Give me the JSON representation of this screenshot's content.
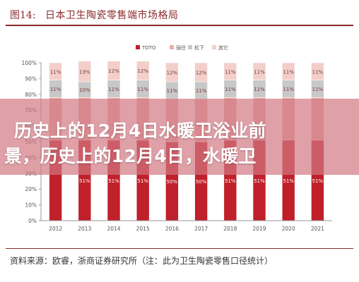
{
  "header": {
    "figure_label": "图14:",
    "title": "日本卫生陶瓷零售端市场格局"
  },
  "overlay": {
    "line1": "历史上的12月4日水暖卫浴业前",
    "line2": "景，历史上的12月4日，水暖卫"
  },
  "footer": {
    "source": "资料来源：欧睿，浙商证券研究所（注：此为卫生陶瓷零售口径统计）"
  },
  "chart_data": {
    "type": "bar",
    "stacked": true,
    "categories": [
      "2012",
      "2013",
      "2014",
      "2015",
      "2016",
      "2017",
      "2018",
      "2019",
      "2020",
      "2021"
    ],
    "series": [
      {
        "name": "TOTO",
        "color": "#c0202a",
        "values": [
          51,
          51,
          51,
          51,
          50,
          50,
          51,
          51,
          51,
          51
        ],
        "labels": [
          "",
          "51%",
          "51%",
          "51%",
          "50%",
          "50%",
          "51%",
          "51%",
          "51%",
          "51%"
        ]
      },
      {
        "name": "骊住",
        "color": "#e8b0aa",
        "values": [
          27,
          27,
          27,
          27,
          27,
          27,
          27,
          27,
          27,
          27
        ],
        "labels": [
          "",
          "",
          "",
          "",
          "",
          "",
          "",
          "",
          "",
          ""
        ]
      },
      {
        "name": "松下",
        "color": "#c8c8c8",
        "values": [
          11,
          10,
          11,
          11,
          11,
          11,
          11,
          11,
          11,
          11
        ],
        "labels": [
          "11%",
          "10%",
          "11%",
          "11%",
          "11%",
          "11%",
          "11%",
          "11%",
          "11%",
          "11%"
        ]
      },
      {
        "name": "其它",
        "color": "#f2cfca",
        "values": [
          11,
          13,
          12,
          12,
          12,
          12,
          11,
          11,
          11,
          11
        ],
        "labels": [
          "11%",
          "13%",
          "12%",
          "12%",
          "12%",
          "12%",
          "11%",
          "11%",
          "11%",
          "11%"
        ]
      }
    ],
    "yticks": [
      "0%",
      "10%",
      "20%",
      "30%",
      "40%",
      "50%",
      "60%",
      "70%",
      "80%",
      "90%",
      "100%"
    ],
    "ylim": [
      0,
      100
    ],
    "legend": "top-center",
    "grid": false
  }
}
